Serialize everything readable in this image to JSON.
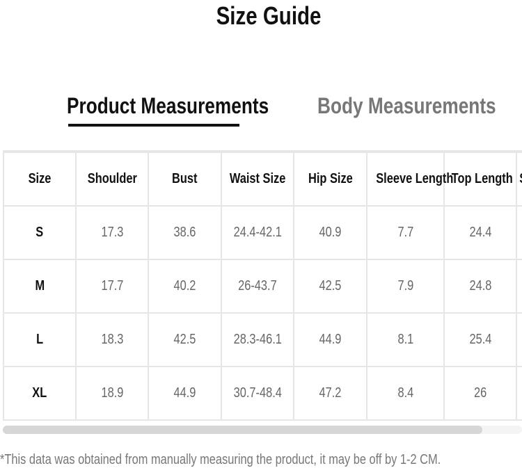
{
  "title": "Size Guide",
  "tabs": [
    {
      "label": "Product Measurements",
      "active": true
    },
    {
      "label": "Body Measurements",
      "active": false
    }
  ],
  "table": {
    "headers": [
      "Size",
      "Shoulder",
      "Bust",
      "Waist Size",
      "Hip Size",
      "Sleeve Length",
      "Top Length",
      "S"
    ],
    "rows": [
      [
        "S",
        "17.3",
        "38.6",
        "24.4-42.1",
        "40.9",
        "7.7",
        "24.4",
        ""
      ],
      [
        "M",
        "17.7",
        "40.2",
        "26-43.7",
        "42.5",
        "7.9",
        "24.8",
        ""
      ],
      [
        "L",
        "18.3",
        "42.5",
        "28.3-46.1",
        "44.9",
        "8.1",
        "25.4",
        ""
      ],
      [
        "XL",
        "18.9",
        "44.9",
        "30.7-48.4",
        "47.2",
        "8.4",
        "26",
        ""
      ]
    ]
  },
  "note": "*This data was obtained from manually measuring the product, it may be off by 1-2 CM."
}
